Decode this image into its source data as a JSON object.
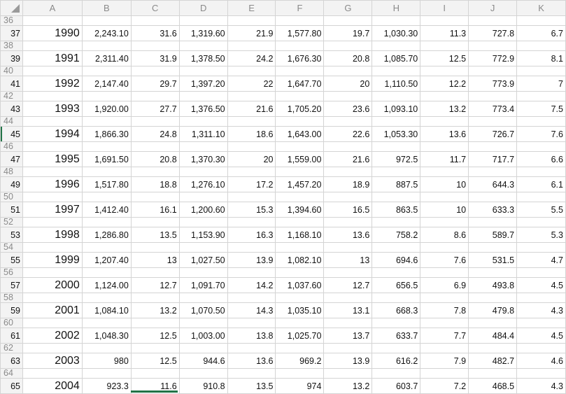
{
  "columns": [
    "A",
    "B",
    "C",
    "D",
    "E",
    "F",
    "G",
    "H",
    "I",
    "J",
    "K"
  ],
  "selected_row": 45,
  "accent_color": "#217346",
  "rows": [
    {
      "num": 36
    },
    {
      "num": 37,
      "cells": [
        "1990",
        "2,243.10",
        "31.6",
        "1,319.60",
        "21.9",
        "1,577.80",
        "19.7",
        "1,030.30",
        "11.3",
        "727.8",
        "6.7"
      ]
    },
    {
      "num": 38
    },
    {
      "num": 39,
      "cells": [
        "1991",
        "2,311.40",
        "31.9",
        "1,378.50",
        "24.2",
        "1,676.30",
        "20.8",
        "1,085.70",
        "12.5",
        "772.9",
        "8.1"
      ]
    },
    {
      "num": 40
    },
    {
      "num": 41,
      "cells": [
        "1992",
        "2,147.40",
        "29.7",
        "1,397.20",
        "22",
        "1,647.70",
        "20",
        "1,110.50",
        "12.2",
        "773.9",
        "7"
      ]
    },
    {
      "num": 42
    },
    {
      "num": 43,
      "cells": [
        "1993",
        "1,920.00",
        "27.7",
        "1,376.50",
        "21.6",
        "1,705.20",
        "23.6",
        "1,093.10",
        "13.2",
        "773.4",
        "7.5"
      ]
    },
    {
      "num": 44
    },
    {
      "num": 45,
      "cells": [
        "1994",
        "1,866.30",
        "24.8",
        "1,311.10",
        "18.6",
        "1,643.00",
        "22.6",
        "1,053.30",
        "13.6",
        "726.7",
        "7.6"
      ]
    },
    {
      "num": 46
    },
    {
      "num": 47,
      "cells": [
        "1995",
        "1,691.50",
        "20.8",
        "1,370.30",
        "20",
        "1,559.00",
        "21.6",
        "972.5",
        "11.7",
        "717.7",
        "6.6"
      ]
    },
    {
      "num": 48
    },
    {
      "num": 49,
      "cells": [
        "1996",
        "1,517.80",
        "18.8",
        "1,276.10",
        "17.2",
        "1,457.20",
        "18.9",
        "887.5",
        "10",
        "644.3",
        "6.1"
      ]
    },
    {
      "num": 50
    },
    {
      "num": 51,
      "cells": [
        "1997",
        "1,412.40",
        "16.1",
        "1,200.60",
        "15.3",
        "1,394.60",
        "16.5",
        "863.5",
        "10",
        "633.3",
        "5.5"
      ]
    },
    {
      "num": 52
    },
    {
      "num": 53,
      "cells": [
        "1998",
        "1,286.80",
        "13.5",
        "1,153.90",
        "16.3",
        "1,168.10",
        "13.6",
        "758.2",
        "8.6",
        "589.7",
        "5.3"
      ]
    },
    {
      "num": 54
    },
    {
      "num": 55,
      "cells": [
        "1999",
        "1,207.40",
        "13",
        "1,027.50",
        "13.9",
        "1,082.10",
        "13",
        "694.6",
        "7.6",
        "531.5",
        "4.7"
      ]
    },
    {
      "num": 56
    },
    {
      "num": 57,
      "cells": [
        "2000",
        "1,124.00",
        "12.7",
        "1,091.70",
        "14.2",
        "1,037.60",
        "12.7",
        "656.5",
        "6.9",
        "493.8",
        "4.5"
      ]
    },
    {
      "num": 58
    },
    {
      "num": 59,
      "cells": [
        "2001",
        "1,084.10",
        "13.2",
        "1,070.50",
        "14.3",
        "1,035.10",
        "13.1",
        "668.3",
        "7.8",
        "479.8",
        "4.3"
      ]
    },
    {
      "num": 60
    },
    {
      "num": 61,
      "cells": [
        "2002",
        "1,048.30",
        "12.5",
        "1,003.00",
        "13.8",
        "1,025.70",
        "13.7",
        "633.7",
        "7.7",
        "484.4",
        "4.5"
      ]
    },
    {
      "num": 62
    },
    {
      "num": 63,
      "cells": [
        "2003",
        "980",
        "12.5",
        "944.6",
        "13.6",
        "969.2",
        "13.9",
        "616.2",
        "7.9",
        "482.7",
        "4.6"
      ]
    },
    {
      "num": 64
    },
    {
      "num": 65,
      "cells": [
        "2004",
        "923.3",
        "11.6",
        "910.8",
        "13.5",
        "974",
        "13.2",
        "603.7",
        "7.2",
        "468.5",
        "4.3"
      ]
    }
  ]
}
